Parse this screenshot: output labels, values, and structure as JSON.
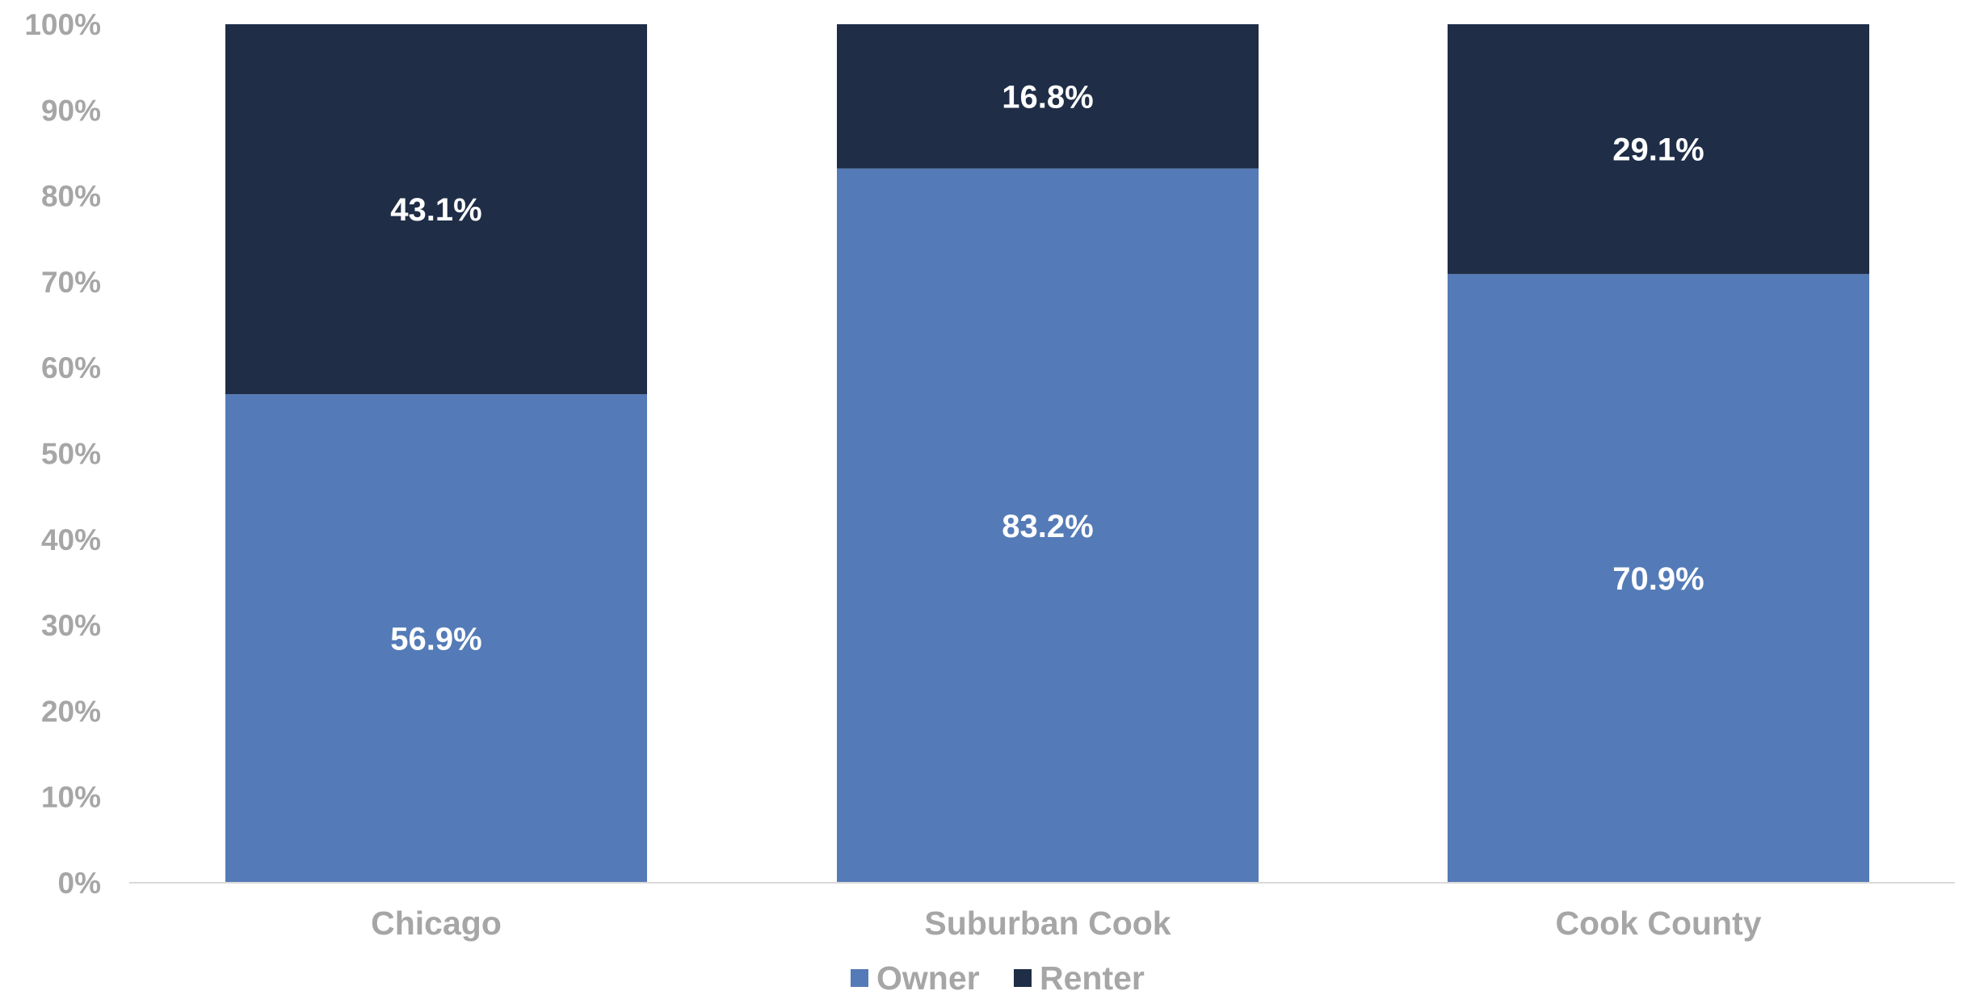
{
  "chart_data": {
    "type": "bar",
    "stacked": true,
    "categories": [
      "Chicago",
      "Suburban Cook",
      "Cook County"
    ],
    "series": [
      {
        "name": "Owner",
        "values": [
          56.9,
          83.2,
          70.9
        ],
        "labels": [
          "56.9%",
          "83.2%",
          "70.9%"
        ],
        "color": "#547bb7"
      },
      {
        "name": "Renter",
        "values": [
          43.1,
          16.8,
          29.1
        ],
        "labels": [
          "43.1%",
          "16.8%",
          "29.1%"
        ],
        "color": "#1f2d47"
      }
    ],
    "y_ticks": [
      "0%",
      "10%",
      "20%",
      "30%",
      "40%",
      "50%",
      "60%",
      "70%",
      "80%",
      "90%",
      "100%"
    ],
    "ylim": [
      0,
      100
    ],
    "grid": false,
    "legend_position": "bottom",
    "title": "",
    "xlabel": "",
    "ylabel": ""
  },
  "colors": {
    "axis_text": "#a6a6a6",
    "axis_line": "#d9d9d9",
    "data_label": "#ffffff"
  }
}
